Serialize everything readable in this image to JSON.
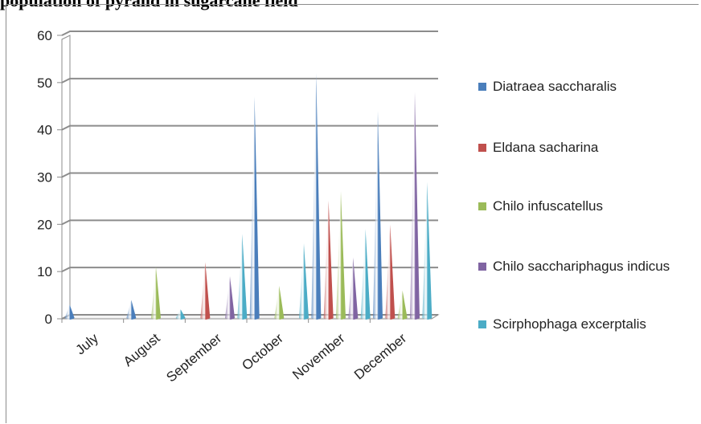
{
  "page": {
    "title_fragment": "population of pyralid in sugarcane field"
  },
  "chart_data": {
    "type": "bar",
    "bar_shape": "cone",
    "categories": [
      "July",
      "August",
      "September",
      "October",
      "November",
      "December"
    ],
    "ylim": [
      0,
      60
    ],
    "yticks": [
      0,
      10,
      20,
      30,
      40,
      50,
      60
    ],
    "grid": true,
    "legend_position": "right",
    "series": [
      {
        "name": "Diatraea saccharalis",
        "color": "#4a7ebb",
        "values": [
          3,
          4,
          0,
          47,
          52,
          44
        ]
      },
      {
        "name": "Eldana sacharina",
        "color": "#c0504d",
        "values": [
          0,
          0,
          12,
          0,
          25,
          20
        ]
      },
      {
        "name": "Chilo infuscatellus",
        "color": "#9bbb59",
        "values": [
          0,
          11,
          0,
          7,
          27,
          6
        ]
      },
      {
        "name": "Chilo sacchariphagus indicus",
        "color": "#8064a2",
        "values": [
          0,
          0,
          9,
          0,
          13,
          48
        ]
      },
      {
        "name": "Scirphophaga excerptalis",
        "color": "#4bacc6",
        "values": [
          0,
          2,
          18,
          16,
          19,
          29
        ]
      }
    ]
  }
}
